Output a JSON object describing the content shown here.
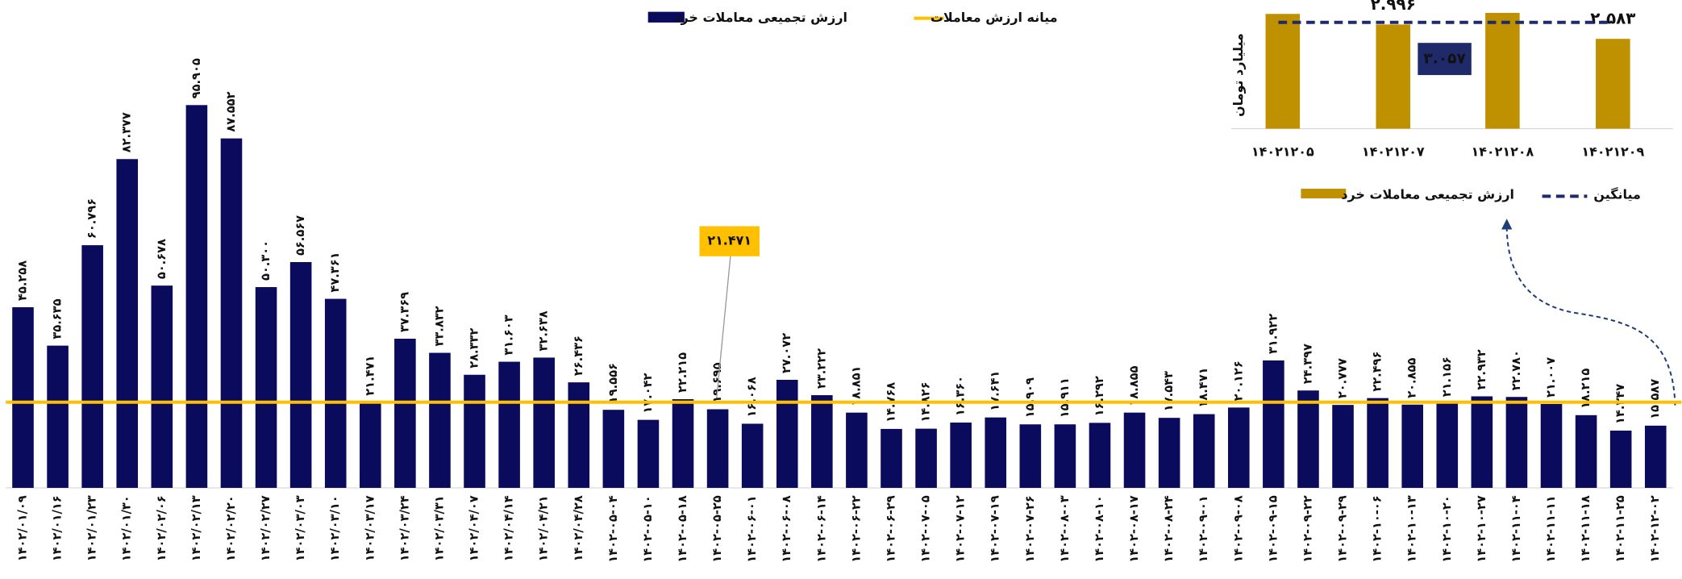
{
  "chart_data": [
    {
      "type": "bar",
      "categories": [
        "۱۴۰۲/۰۱/۰۹",
        "۱۴۰۲/۰۱/۱۶",
        "۱۴۰۲/۰۱/۲۳",
        "۱۴۰۲/۰۱/۳۰",
        "۱۴۰۲/۰۲/۰۶",
        "۱۴۰۲/۰۲/۱۳",
        "۱۴۰۲/۰۲/۲۰",
        "۱۴۰۲/۰۲/۲۷",
        "۱۴۰۲/۰۳/۰۳",
        "۱۴۰۲/۰۳/۱۰",
        "۱۴۰۲/۰۳/۱۷",
        "۱۴۰۲/۰۳/۲۴",
        "۱۴۰۲/۰۳/۳۱",
        "۱۴۰۲/۰۴/۰۷",
        "۱۴۰۲/۰۴/۱۴",
        "۱۴۰۲/۰۴/۲۱",
        "۱۴۰۲/۰۴/۲۸",
        "۱۴۰۲-۰۵-۰۴",
        "۱۴۰۲-۰۵-۱۰",
        "۱۴۰۲-۰۵-۱۸",
        "۱۴۰۲-۰۵-۲۵",
        "۱۴۰۲-۰۶-۰۱",
        "۱۴۰۲-۰۶-۰۸",
        "۱۴۰۲-۰۶-۱۴",
        "۱۴۰۲-۰۶-۲۲",
        "۱۴۰۲-۰۶-۲۹",
        "۱۴۰۲-۰۷-۰۵",
        "۱۴۰۲-۰۷-۱۲",
        "۱۴۰۲-۰۷-۱۹",
        "۱۴۰۲-۰۷-۲۶",
        "۱۴۰۲-۰۸-۰۳",
        "۱۴۰۲-۰۸-۱۰",
        "۱۴۰۲-۰۸-۱۷",
        "۱۴۰۲-۰۸-۲۴",
        "۱۴۰۲-۰۹-۰۱",
        "۱۴۰۲-۰۹-۰۸",
        "۱۴۰۲-۰۹-۱۵",
        "۱۴۰۲-۰۹-۲۲",
        "۱۴۰۲-۰۹-۲۹",
        "۱۴۰۲-۱۰-۰۶",
        "۱۴۰۲-۱۰-۱۳",
        "۱۴۰۲-۱۰-۲۰",
        "۱۴۰۲-۱۰-۲۷",
        "۱۴۰۲-۱۱-۰۴",
        "۱۴۰۲-۱۱-۱۱",
        "۱۴۰۲-۱۱-۱۸",
        "۱۴۰۲-۱۱-۲۵",
        "۱۴۰۲-۱۲-۰۲"
      ],
      "series": [
        {
          "name": "ارزش تجمیعی معاملات خرد",
          "color": "#0b0b5e",
          "values": [
            45.258,
            35.635,
            60.796,
            82.377,
            50.678,
            95.905,
            87.552,
            50.3,
            56.567,
            47.361,
            21.471,
            37.369,
            33.832,
            28.332,
            31.603,
            32.638,
            26.436,
            19.556,
            17.042,
            22.215,
            19.695,
            16.068,
            27.072,
            23.222,
            18.851,
            14.768,
            14.826,
            16.36,
            17.641,
            15.909,
            15.911,
            16.292,
            18.855,
            17.543,
            18.471,
            20.126,
            31.922,
            24.397,
            20.777,
            22.496,
            20.855,
            21.156,
            22.932,
            22.78,
            21.007,
            18.215,
            14.347,
            15.587
          ],
          "value_labels": [
            "۴۵.۲۵۸",
            "۳۵.۶۳۵",
            "۶۰.۷۹۶",
            "۸۲.۳۷۷",
            "۵۰.۶۷۸",
            "۹۵.۹۰۵",
            "۸۷.۵۵۲",
            "۵۰.۳۰۰",
            "۵۶.۵۶۷",
            "۴۷.۳۶۱",
            "۲۱.۴۷۱",
            "۳۷.۳۶۹",
            "۳۳.۸۳۲",
            "۲۸.۳۳۲",
            "۳۱.۶۰۳",
            "۳۲.۶۳۸",
            "۲۶.۴۳۶",
            "۱۹.۵۵۶",
            "۱۷.۰۴۲",
            "۲۲.۲۱۵",
            "۱۹.۶۹۵",
            "۱۶.۰۶۸",
            "۲۷.۰۷۲",
            "۲۳.۲۲۲",
            "۱۸.۸۵۱",
            "۱۴.۷۶۸",
            "۱۴.۸۲۶",
            "۱۶.۳۶۰",
            "۱۷.۶۴۱",
            "۱۵.۹۰۹",
            "۱۵.۹۱۱",
            "۱۶.۲۹۲",
            "۱۸.۸۵۵",
            "۱۷.۵۴۳",
            "۱۸.۴۷۱",
            "۲۰.۱۲۶",
            "۳۱.۹۲۲",
            "۲۴.۳۹۷",
            "۲۰.۷۷۷",
            "۲۲.۴۹۶",
            "۲۰.۸۵۵",
            "۲۱.۱۵۶",
            "۲۲.۹۳۲",
            "۲۲.۷۸۰",
            "۲۱.۰۰۷",
            "۱۸.۲۱۵",
            "۱۴.۳۴۷",
            "۱۵.۵۸۷"
          ]
        }
      ],
      "median": {
        "name": "میانه ارزش معاملات",
        "value": 21.471,
        "label": "۲۱.۴۷۱",
        "color": "#ffc000"
      }
    },
    {
      "type": "bar",
      "y_label": "میلیارد تومان",
      "categories": [
        "۱۴۰۲۱۲۰۵",
        "۱۴۰۲۱۲۰۷",
        "۱۴۰۲۱۲۰۸",
        "۱۴۰۲۱۲۰۹"
      ],
      "series": [
        {
          "name": "ارزش تجمیعی معاملات خرد",
          "color": "#bf9000",
          "values": [
            3.3,
            2.996,
            3.33,
            2.583
          ],
          "value_labels": [
            null,
            "۲.۹۹۶",
            null,
            "۲.۵۸۳"
          ]
        }
      ],
      "mean": {
        "name": "میانگین",
        "value": 3.057,
        "label": "۳.۰۵۷",
        "color": "#1f2a6b"
      }
    }
  ]
}
